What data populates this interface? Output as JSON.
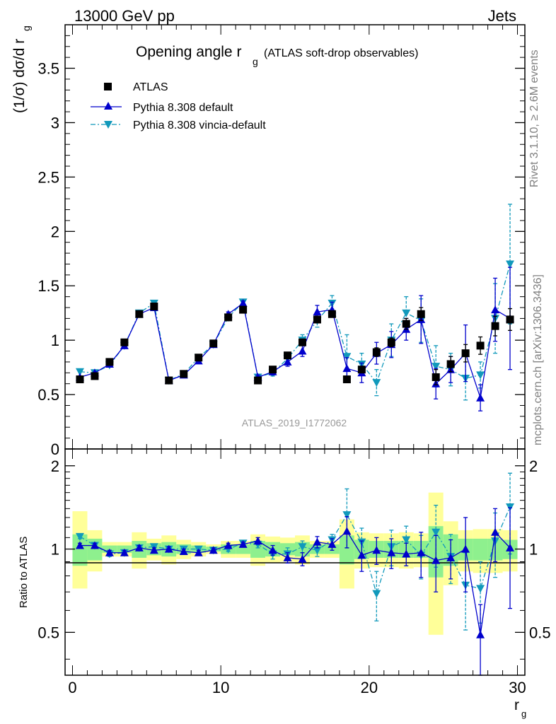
{
  "header": {
    "left": "13000 GeV pp",
    "right": "Jets"
  },
  "side": {
    "rivet": "Rivet 3.1.10, ≥ 2.6M events",
    "mcplots": "mcplots.cern.ch [arXiv:1306.3436]"
  },
  "watermark": "ATLAS_2019_I1772062",
  "colors": {
    "atlas": "#000000",
    "default": "#0000cc",
    "vincia": "#1199bb",
    "band_inner": "#8ef08e",
    "band_outer": "#ffff99"
  },
  "chart_data": [
    {
      "type": "scatter",
      "title": "Opening angle r",
      "title_sub": "g",
      "title_note": "(ATLAS soft-drop observables)",
      "ylabel": "(1/σ) dσ/d r",
      "ylabel_sub": "g",
      "xlim": [
        -0.5,
        30.5
      ],
      "ylim": [
        0,
        3.9
      ],
      "yticks": [
        0,
        0.5,
        1,
        1.5,
        2,
        2.5,
        3,
        3.5
      ],
      "ytick_labels": [
        "0",
        "0.5",
        "1",
        "1.5",
        "2",
        "2.5",
        "3",
        "3.5"
      ],
      "legend_placement": "top-left",
      "x": [
        0.5,
        1.5,
        2.5,
        3.5,
        4.5,
        5.5,
        6.5,
        7.5,
        8.5,
        9.5,
        10.5,
        11.5,
        12.5,
        13.5,
        14.5,
        15.5,
        16.5,
        17.5,
        18.5,
        19.5,
        20.5,
        21.5,
        22.5,
        23.5,
        24.5,
        25.5,
        26.5,
        27.5,
        28.5,
        29.5
      ],
      "series": [
        {
          "name": "ATLAS",
          "marker": "square",
          "values": [
            0.64,
            0.67,
            0.8,
            0.98,
            1.24,
            1.31,
            0.63,
            0.69,
            0.84,
            0.97,
            1.21,
            1.28,
            0.63,
            0.73,
            0.86,
            0.98,
            1.19,
            1.24,
            0.64,
            0.73,
            0.89,
            0.98,
            1.15,
            1.24,
            0.66,
            0.78,
            0.88,
            0.95,
            1.13,
            1.19
          ],
          "errors": [
            0.02,
            0.02,
            0.02,
            0.02,
            0.03,
            0.03,
            0.02,
            0.02,
            0.02,
            0.02,
            0.03,
            0.03,
            0.02,
            0.02,
            0.02,
            0.03,
            0.03,
            0.03,
            0.03,
            0.03,
            0.04,
            0.04,
            0.05,
            0.06,
            0.07,
            0.07,
            0.08,
            0.08,
            0.09,
            0.1
          ]
        },
        {
          "name": "Pythia 8.308 default",
          "marker": "triangle-up",
          "values": [
            0.66,
            0.7,
            0.78,
            0.95,
            1.24,
            1.3,
            0.63,
            0.68,
            0.81,
            0.96,
            1.24,
            1.34,
            0.66,
            0.71,
            0.8,
            0.9,
            1.26,
            1.28,
            0.74,
            0.7,
            0.88,
            0.96,
            1.1,
            1.19,
            0.6,
            0.73,
            0.88,
            0.47,
            1.28,
            1.2
          ],
          "errors": [
            0.01,
            0.01,
            0.01,
            0.01,
            0.02,
            0.02,
            0.01,
            0.01,
            0.01,
            0.01,
            0.02,
            0.02,
            0.02,
            0.03,
            0.04,
            0.05,
            0.06,
            0.07,
            0.1,
            0.09,
            0.1,
            0.12,
            0.1,
            0.22,
            0.14,
            0.12,
            0.26,
            0.12,
            0.29,
            0.47
          ]
        },
        {
          "name": "Pythia 8.308 vincia-default",
          "marker": "triangle-down",
          "values": [
            0.71,
            0.7,
            0.77,
            0.95,
            1.25,
            1.34,
            0.63,
            0.69,
            0.84,
            0.96,
            1.21,
            1.35,
            0.66,
            0.7,
            0.83,
            1.0,
            1.18,
            1.34,
            0.85,
            0.78,
            0.61,
            1.0,
            1.25,
            1.18,
            0.76,
            0.73,
            0.65,
            0.68,
            1.2,
            1.7
          ],
          "errors": [
            0.01,
            0.01,
            0.01,
            0.01,
            0.02,
            0.02,
            0.01,
            0.01,
            0.01,
            0.02,
            0.02,
            0.02,
            0.02,
            0.03,
            0.04,
            0.05,
            0.06,
            0.07,
            0.2,
            0.1,
            0.12,
            0.15,
            0.15,
            0.2,
            0.19,
            0.15,
            0.2,
            0.12,
            0.32,
            0.55
          ]
        }
      ]
    },
    {
      "type": "scatter",
      "ylabel": "Ratio to ATLAS",
      "xlabel": "r",
      "xlabel_sub": "g",
      "xlim": [
        -0.5,
        30.5
      ],
      "ylim": [
        0.35,
        2.3
      ],
      "xticks": [
        0,
        10,
        20,
        30
      ],
      "xtick_labels": [
        "0",
        "10",
        "20",
        "30"
      ],
      "yticks": [
        0.5,
        1,
        2
      ],
      "ytick_labels": [
        "0.5",
        "1",
        "2"
      ],
      "x": [
        0.5,
        1.5,
        2.5,
        3.5,
        4.5,
        5.5,
        6.5,
        7.5,
        8.5,
        9.5,
        10.5,
        11.5,
        12.5,
        13.5,
        14.5,
        15.5,
        16.5,
        17.5,
        18.5,
        19.5,
        20.5,
        21.5,
        22.5,
        23.5,
        24.5,
        25.5,
        26.5,
        27.5,
        28.5,
        29.5
      ],
      "band_inner": [
        [
          0.87,
          1.13
        ],
        [
          0.91,
          1.09
        ],
        [
          0.97,
          1.03
        ],
        [
          0.97,
          1.03
        ],
        [
          0.93,
          1.07
        ],
        [
          0.95,
          1.05
        ],
        [
          0.94,
          1.06
        ],
        [
          0.96,
          1.04
        ],
        [
          0.97,
          1.03
        ],
        [
          0.98,
          1.02
        ],
        [
          0.96,
          1.04
        ],
        [
          0.96,
          1.04
        ],
        [
          0.93,
          1.07
        ],
        [
          0.94,
          1.06
        ],
        [
          0.95,
          1.05
        ],
        [
          0.94,
          1.06
        ],
        [
          0.96,
          1.04
        ],
        [
          0.96,
          1.04
        ],
        [
          0.88,
          1.12
        ],
        [
          0.92,
          1.08
        ],
        [
          0.93,
          1.07
        ],
        [
          0.93,
          1.07
        ],
        [
          0.93,
          1.07
        ],
        [
          0.93,
          1.07
        ],
        [
          0.79,
          1.21
        ],
        [
          0.87,
          1.13
        ],
        [
          0.91,
          1.09
        ],
        [
          0.91,
          1.09
        ],
        [
          0.91,
          1.09
        ],
        [
          0.92,
          1.08
        ]
      ],
      "band_outer": [
        [
          0.72,
          1.37
        ],
        [
          0.83,
          1.17
        ],
        [
          0.94,
          1.06
        ],
        [
          0.94,
          1.06
        ],
        [
          0.85,
          1.15
        ],
        [
          0.91,
          1.09
        ],
        [
          0.88,
          1.12
        ],
        [
          0.92,
          1.08
        ],
        [
          0.94,
          1.06
        ],
        [
          0.96,
          1.04
        ],
        [
          0.93,
          1.07
        ],
        [
          0.93,
          1.07
        ],
        [
          0.87,
          1.13
        ],
        [
          0.89,
          1.11
        ],
        [
          0.9,
          1.1
        ],
        [
          0.88,
          1.12
        ],
        [
          0.93,
          1.07
        ],
        [
          0.93,
          1.07
        ],
        [
          0.72,
          1.28
        ],
        [
          0.85,
          1.15
        ],
        [
          0.86,
          1.14
        ],
        [
          0.86,
          1.14
        ],
        [
          0.85,
          1.15
        ],
        [
          0.86,
          1.14
        ],
        [
          0.49,
          1.6
        ],
        [
          0.74,
          1.26
        ],
        [
          0.83,
          1.17
        ],
        [
          0.82,
          1.18
        ],
        [
          0.82,
          1.18
        ],
        [
          0.83,
          1.17
        ]
      ],
      "series": [
        {
          "name": "Pythia 8.308 default",
          "marker": "triangle-up",
          "values": [
            1.03,
            1.03,
            0.97,
            0.97,
            1.01,
            0.99,
            1.0,
            0.98,
            0.97,
            0.99,
            1.03,
            1.04,
            1.07,
            0.99,
            0.93,
            0.92,
            1.06,
            1.04,
            1.16,
            0.95,
            0.99,
            0.97,
            0.96,
            0.97,
            0.91,
            0.93,
            1.0,
            0.49,
            1.15,
            1.01
          ],
          "errors": [
            0.02,
            0.02,
            0.02,
            0.02,
            0.02,
            0.02,
            0.02,
            0.02,
            0.02,
            0.02,
            0.02,
            0.02,
            0.03,
            0.04,
            0.04,
            0.05,
            0.05,
            0.05,
            0.15,
            0.12,
            0.11,
            0.12,
            0.09,
            0.18,
            0.21,
            0.15,
            0.3,
            0.14,
            0.25,
            0.4
          ]
        },
        {
          "name": "Pythia 8.308 vincia-default",
          "marker": "triangle-down",
          "values": [
            1.11,
            1.03,
            0.96,
            0.97,
            1.01,
            1.02,
            1.0,
            1.0,
            1.0,
            0.99,
            1.0,
            1.05,
            1.04,
            0.96,
            0.96,
            1.02,
            0.99,
            1.08,
            1.33,
            1.06,
            0.69,
            1.02,
            1.08,
            0.95,
            1.15,
            0.94,
            0.74,
            0.72,
            1.07,
            1.42
          ],
          "errors": [
            0.02,
            0.02,
            0.02,
            0.02,
            0.02,
            0.02,
            0.02,
            0.02,
            0.02,
            0.02,
            0.02,
            0.02,
            0.03,
            0.04,
            0.05,
            0.05,
            0.05,
            0.05,
            0.32,
            0.13,
            0.14,
            0.15,
            0.13,
            0.17,
            0.29,
            0.19,
            0.23,
            0.18,
            0.28,
            0.46
          ]
        }
      ]
    }
  ]
}
